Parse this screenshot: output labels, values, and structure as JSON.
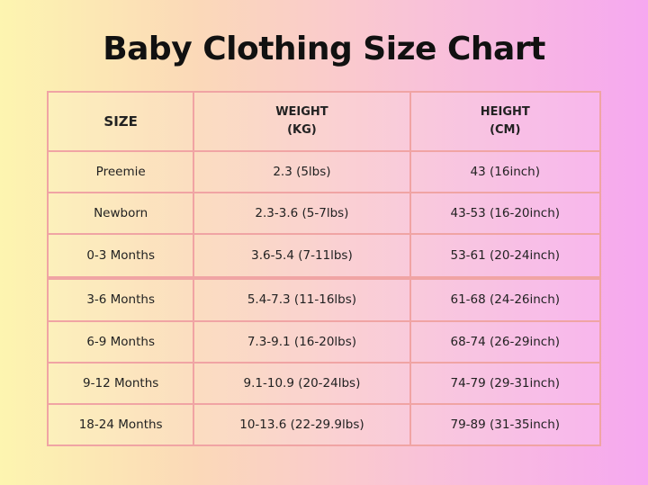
{
  "title": "Baby Clothing Size Chart",
  "table": {
    "headers": [
      [
        "SIZE"
      ],
      [
        "WEIGHT",
        "(KG)"
      ],
      [
        "HEIGHT",
        "(CM)"
      ]
    ],
    "rows": [
      [
        "Preemie",
        "2.3 (5lbs)",
        "43 (16inch)"
      ],
      [
        "Newborn",
        "2.3-3.6 (5-7lbs)",
        "43-53 (16-20inch)"
      ],
      [
        "0-3 Months",
        "3.6-5.4 (7-11lbs)",
        "53-61 (20-24inch)"
      ],
      [
        "3-6 Months",
        "5.4-7.3 (11-16lbs)",
        "61-68 (24-26inch)"
      ],
      [
        "6-9 Months",
        "7.3-9.1 (16-20lbs)",
        "68-74 (26-29inch)"
      ],
      [
        "9-12 Months",
        "9.1-10.9 (20-24lbs)",
        "74-79 (29-31inch)"
      ],
      [
        "18-24 Months",
        "10-13.6 (22-29.9lbs)",
        "79-89 (31-35inch)"
      ]
    ]
  }
}
